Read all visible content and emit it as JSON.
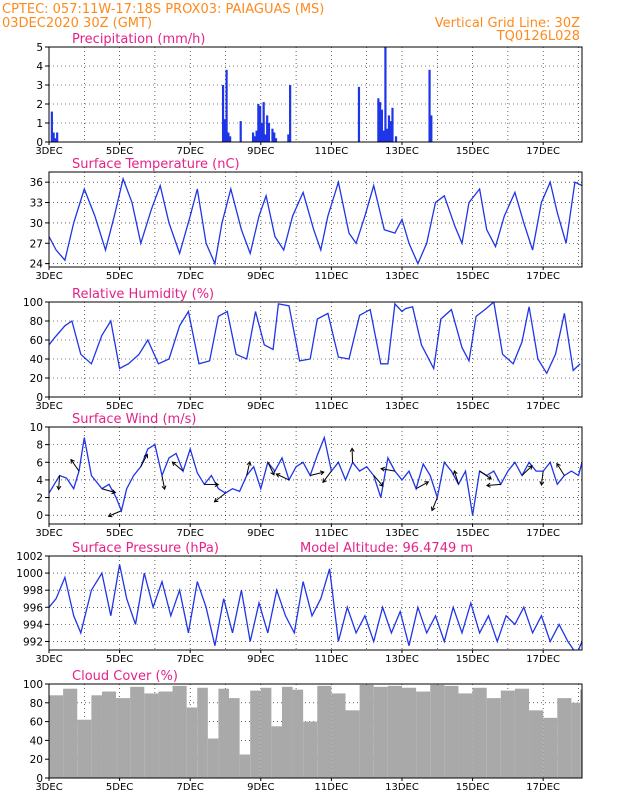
{
  "header": {
    "line1": "CPTEC:   057:11W-17:18S   PROX03: PAIAGUAS (MS)",
    "line2_left": "03DEC2020 30Z (GMT)",
    "line2_right": "Vertical Grid Line: 30Z",
    "line3_right": "TQ0126L028"
  },
  "colors": {
    "header": "#ff8a1c",
    "title": "#e6218a",
    "series": "#1f35e8",
    "cloud": "#a9a9a9",
    "grid": "#000000"
  },
  "x_axis": {
    "labels": [
      "3DEC",
      "5DEC",
      "7DEC",
      "9DEC",
      "11DEC",
      "13DEC",
      "15DEC",
      "17DEC"
    ],
    "start_day": 3,
    "end_day": 18.1
  },
  "chart_data": [
    {
      "type": "bar",
      "title": "Precipitation (mm/h)",
      "ylim": [
        0,
        5
      ],
      "yticks": [
        0,
        1,
        2,
        3,
        4,
        5
      ],
      "x": [
        3.05,
        3.1,
        3.15,
        3.2,
        7.9,
        7.95,
        8.0,
        8.05,
        8.1,
        8.4,
        8.75,
        8.8,
        8.85,
        8.9,
        8.95,
        9.0,
        9.05,
        9.1,
        9.15,
        9.2,
        9.3,
        9.35,
        9.4,
        9.75,
        9.8,
        11.75,
        12.3,
        12.35,
        12.4,
        12.45,
        12.5,
        12.55,
        12.6,
        12.65,
        12.7,
        12.8,
        13.75,
        13.8
      ],
      "values": [
        1.6,
        0.5,
        0.2,
        0.5,
        3.0,
        1.2,
        3.8,
        0.5,
        0.3,
        1.1,
        0.5,
        0.3,
        0.6,
        2.0,
        1.9,
        1.0,
        2.1,
        0.4,
        1.4,
        1.0,
        0.7,
        0.5,
        0.2,
        0.4,
        3.0,
        2.9,
        2.3,
        2.1,
        1.7,
        0.6,
        5.0,
        0.7,
        1.4,
        1.1,
        1.8,
        0.3,
        3.8,
        1.4
      ]
    },
    {
      "type": "line",
      "title": "Surface Temperature (nC)",
      "ylim": [
        23.5,
        37.5
      ],
      "yticks": [
        24,
        27,
        30,
        33,
        36
      ],
      "x": [
        3.0,
        3.2,
        3.45,
        3.7,
        4.0,
        4.3,
        4.6,
        4.85,
        5.1,
        5.35,
        5.6,
        5.9,
        6.15,
        6.4,
        6.7,
        7.0,
        7.2,
        7.45,
        7.7,
        7.9,
        8.15,
        8.45,
        8.7,
        8.95,
        9.15,
        9.4,
        9.65,
        9.9,
        10.2,
        10.5,
        10.7,
        10.9,
        11.2,
        11.5,
        11.7,
        11.95,
        12.2,
        12.5,
        12.8,
        13.0,
        13.2,
        13.45,
        13.7,
        13.95,
        14.2,
        14.5,
        14.7,
        14.9,
        15.2,
        15.4,
        15.65,
        15.9,
        16.2,
        16.45,
        16.7,
        16.95,
        17.2,
        17.4,
        17.65,
        17.9,
        18.1
      ],
      "values": [
        28,
        26,
        24.5,
        30,
        35,
        31,
        26,
        31,
        36.5,
        33,
        27,
        32,
        35.5,
        30,
        25.5,
        31,
        35,
        27,
        24,
        30,
        35,
        29,
        25.5,
        31,
        34,
        28,
        26,
        31,
        34.5,
        29,
        26,
        31,
        36,
        28.5,
        27,
        31,
        35.5,
        29,
        28.5,
        30.5,
        27,
        24,
        27,
        33,
        34,
        29.5,
        27,
        33,
        35,
        29,
        26.5,
        31,
        34.5,
        30,
        26,
        33,
        36,
        31.5,
        27,
        36,
        35.5
      ]
    },
    {
      "type": "line",
      "title": "Relative Humidity (%)",
      "ylim": [
        0,
        100
      ],
      "yticks": [
        0,
        20,
        40,
        60,
        80,
        100
      ],
      "x": [
        3.0,
        3.15,
        3.45,
        3.65,
        3.9,
        4.2,
        4.5,
        4.75,
        5.0,
        5.25,
        5.55,
        5.8,
        6.1,
        6.4,
        6.7,
        6.95,
        7.25,
        7.55,
        7.8,
        8.05,
        8.3,
        8.6,
        8.85,
        9.1,
        9.35,
        9.5,
        9.8,
        10.1,
        10.4,
        10.6,
        10.9,
        11.2,
        11.5,
        11.8,
        12.1,
        12.4,
        12.6,
        12.8,
        13.0,
        13.1,
        13.3,
        13.55,
        13.9,
        14.1,
        14.4,
        14.7,
        14.9,
        15.1,
        15.35,
        15.6,
        15.85,
        16.15,
        16.4,
        16.6,
        16.85,
        17.1,
        17.35,
        17.6,
        17.85,
        18.05
      ],
      "values": [
        55,
        62,
        75,
        80,
        45,
        35,
        65,
        80,
        30,
        35,
        45,
        60,
        35,
        40,
        75,
        90,
        35,
        38,
        85,
        90,
        45,
        40,
        90,
        55,
        50,
        98,
        96,
        38,
        40,
        82,
        88,
        42,
        40,
        86,
        92,
        35,
        35,
        98,
        90,
        93,
        95,
        55,
        30,
        82,
        92,
        52,
        38,
        85,
        92,
        100,
        45,
        35,
        58,
        95,
        40,
        25,
        45,
        88,
        28,
        35
      ]
    },
    {
      "type": "line",
      "title": "Surface Wind (m/s)",
      "ylim": [
        -1,
        10
      ],
      "yticks": [
        0,
        2,
        4,
        6,
        8,
        10
      ],
      "x": [
        3.0,
        3.15,
        3.3,
        3.5,
        3.7,
        3.85,
        4.0,
        4.2,
        4.5,
        4.7,
        4.9,
        5.05,
        5.2,
        5.4,
        5.6,
        5.8,
        6.0,
        6.2,
        6.4,
        6.6,
        6.8,
        7.0,
        7.2,
        7.4,
        7.6,
        7.8,
        8.0,
        8.2,
        8.4,
        8.6,
        8.8,
        9.0,
        9.2,
        9.4,
        9.6,
        9.8,
        10.0,
        10.2,
        10.4,
        10.6,
        10.8,
        11.0,
        11.2,
        11.4,
        11.6,
        11.8,
        12.0,
        12.2,
        12.4,
        12.6,
        12.8,
        13.0,
        13.2,
        13.4,
        13.6,
        13.8,
        14.0,
        14.2,
        14.4,
        14.6,
        14.8,
        15.0,
        15.2,
        15.4,
        15.6,
        15.8,
        16.0,
        16.2,
        16.4,
        16.6,
        16.8,
        17.0,
        17.2,
        17.4,
        17.6,
        17.8,
        18.0,
        18.1
      ],
      "values": [
        2.5,
        3.5,
        4.5,
        4.2,
        3.0,
        5.0,
        8.8,
        4.5,
        3.0,
        3.5,
        2.0,
        0.5,
        3.0,
        4.5,
        5.5,
        7.5,
        8.0,
        4.5,
        6.5,
        7.0,
        5.0,
        7.5,
        4.8,
        3.5,
        4.5,
        3.0,
        2.5,
        3.0,
        2.7,
        4.5,
        5.5,
        3.0,
        6.0,
        5.0,
        6.5,
        4.0,
        5.5,
        6.0,
        4.5,
        6.8,
        8.8,
        5.0,
        6.0,
        4.0,
        6.0,
        5.0,
        5.5,
        4.5,
        2.0,
        6.5,
        5.0,
        4.0,
        5.0,
        3.0,
        5.8,
        4.5,
        2.0,
        6.0,
        5.0,
        3.5,
        5.0,
        0.0,
        5.0,
        4.5,
        5.0,
        3.5,
        5.0,
        6.0,
        4.5,
        6.0,
        5.0,
        5.0,
        6.0,
        3.5,
        4.5,
        5.0,
        4.5,
        6.0
      ]
    },
    {
      "type": "line",
      "title": "Surface Pressure (hPa)",
      "annotation": "Model Altitude: 96.4749 m",
      "ylim": [
        991,
        1002
      ],
      "yticks": [
        992,
        994,
        996,
        998,
        1000,
        1002
      ],
      "x": [
        3.0,
        3.2,
        3.45,
        3.7,
        3.9,
        4.2,
        4.5,
        4.75,
        5.0,
        5.2,
        5.45,
        5.7,
        5.95,
        6.2,
        6.45,
        6.7,
        6.95,
        7.2,
        7.45,
        7.7,
        7.95,
        8.2,
        8.45,
        8.7,
        8.95,
        9.2,
        9.45,
        9.7,
        9.95,
        10.2,
        10.45,
        10.7,
        10.95,
        11.2,
        11.45,
        11.7,
        11.95,
        12.2,
        12.45,
        12.7,
        12.95,
        13.2,
        13.45,
        13.7,
        13.95,
        14.2,
        14.45,
        14.7,
        14.95,
        15.2,
        15.45,
        15.7,
        15.95,
        16.2,
        16.45,
        16.7,
        16.95,
        17.2,
        17.45,
        17.7,
        17.95,
        18.1
      ],
      "values": [
        996,
        997,
        999.5,
        995,
        993,
        998,
        1000,
        995,
        1001,
        997,
        994,
        1000,
        996,
        999,
        995,
        998,
        993,
        999,
        996,
        991.5,
        997,
        993,
        998,
        992,
        996.5,
        993,
        998,
        995,
        993,
        999,
        995,
        997,
        1000.5,
        992,
        996,
        993,
        995,
        992,
        996,
        993,
        995.5,
        991.5,
        996,
        993,
        995,
        992,
        996,
        993,
        996.5,
        993,
        995,
        992,
        995,
        994,
        996,
        993,
        995,
        992,
        994,
        992,
        990.5,
        992
      ]
    },
    {
      "type": "bar",
      "title": "Cloud Cover (%)",
      "ylim": [
        0,
        100
      ],
      "yticks": [
        0,
        20,
        40,
        60,
        80,
        100
      ],
      "x": [
        3.0,
        3.4,
        3.8,
        4.2,
        4.5,
        4.9,
        5.3,
        5.7,
        6.1,
        6.5,
        6.9,
        7.2,
        7.5,
        7.8,
        8.1,
        8.4,
        8.7,
        9.0,
        9.3,
        9.6,
        9.9,
        10.2,
        10.6,
        11.0,
        11.4,
        11.8,
        12.2,
        12.6,
        13.0,
        13.4,
        13.8,
        14.2,
        14.6,
        15.0,
        15.4,
        15.8,
        16.2,
        16.6,
        17.0,
        17.4,
        17.8,
        18.05
      ],
      "values": [
        88,
        95,
        62,
        88,
        92,
        85,
        97,
        90,
        92,
        98,
        75,
        96,
        42,
        95,
        85,
        25,
        93,
        96,
        55,
        97,
        94,
        60,
        98,
        90,
        72,
        99,
        97,
        98,
        96,
        92,
        99,
        98,
        90,
        96,
        85,
        93,
        95,
        72,
        64,
        85,
        80,
        94
      ]
    }
  ]
}
